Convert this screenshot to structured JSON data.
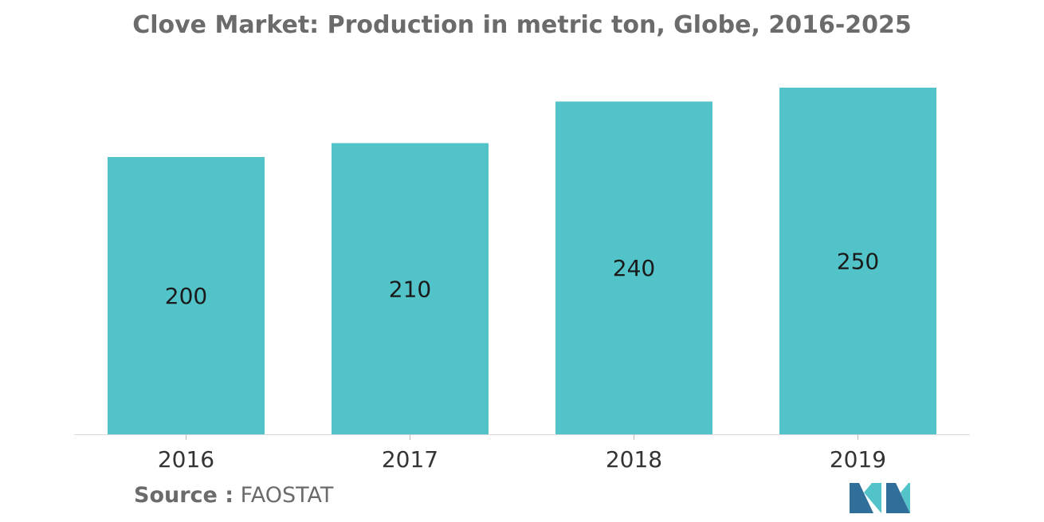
{
  "title": "Clove Market: Production in metric ton, Globe, 2016-2025",
  "source": {
    "label": "Source :",
    "value": "FAOSTAT"
  },
  "chart_data": {
    "type": "bar",
    "categories": [
      "2016",
      "2017",
      "2018",
      "2019"
    ],
    "values": [
      200,
      210,
      240,
      250
    ],
    "data_labels": [
      "200",
      "210",
      "240",
      "250"
    ],
    "title": "Clove Market: Production in metric ton, Globe, 2016-2025",
    "xlabel": "",
    "ylabel": "",
    "grid": false,
    "legend": "none",
    "bar_color": "#52c3c9"
  },
  "logo": {
    "colors": [
      "#2f6f9a",
      "#52c3c9"
    ]
  }
}
